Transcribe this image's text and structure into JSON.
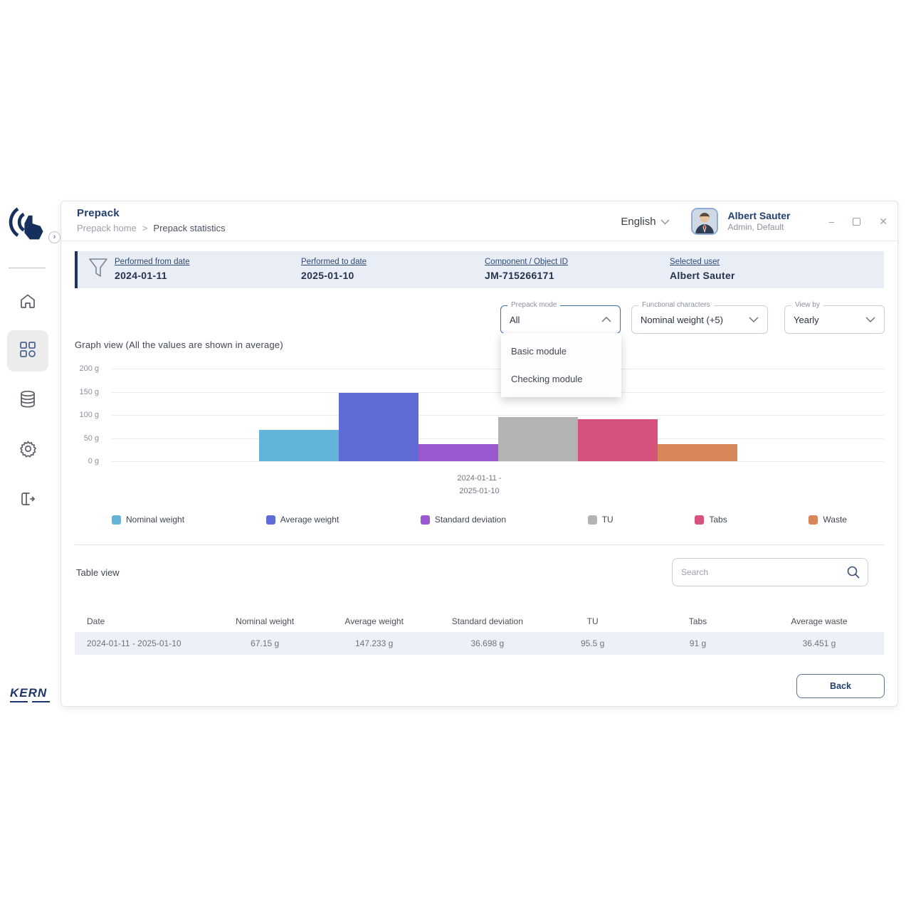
{
  "brand": "KERN",
  "window": {
    "title": "Prepack",
    "breadcrumb": {
      "home": "Prepack home",
      "separator": ">",
      "current": "Prepack statistics"
    },
    "language": "English",
    "user": {
      "name": "Albert Sauter",
      "role": "Admin, Default"
    },
    "controls": {
      "minimize": "–",
      "close": "✕"
    }
  },
  "sidebar": {
    "items": [
      {
        "name": "home",
        "active": false
      },
      {
        "name": "modules",
        "active": true
      },
      {
        "name": "database",
        "active": false
      },
      {
        "name": "settings",
        "active": false
      },
      {
        "name": "logout",
        "active": false
      }
    ]
  },
  "filters": [
    {
      "label": "Performed from date",
      "value": "2024-01-11"
    },
    {
      "label": "Performed to date",
      "value": "2025-01-10"
    },
    {
      "label": "Component / Object ID",
      "value": "JM-715266171"
    },
    {
      "label": "Selected user",
      "value": "Albert Sauter"
    }
  ],
  "controls": {
    "prepack_mode": {
      "label": "Prepack mode",
      "value": "All",
      "expanded": true,
      "options": [
        "Basic module",
        "Checking module"
      ]
    },
    "functional_characters": {
      "label": "Functional characters",
      "value": "Nominal weight (+5)"
    },
    "view_by": {
      "label": "View by",
      "value": "Yearly"
    }
  },
  "graph": {
    "title": "Graph view (All the values are shown in average)",
    "xlabel_line1": "2024-01-11 -",
    "xlabel_line2": "2025-01-10"
  },
  "chart_data": {
    "type": "bar",
    "title": "Graph view (All the values are shown in average)",
    "categories": [
      "2024-01-11 - 2025-01-10"
    ],
    "series": [
      {
        "name": "Nominal weight",
        "values": [
          67.15
        ],
        "color": "#62b5d9"
      },
      {
        "name": "Average weight",
        "values": [
          147.233
        ],
        "color": "#5f6bd6"
      },
      {
        "name": "Standard deviation",
        "values": [
          36.698
        ],
        "color": "#9b59d0"
      },
      {
        "name": "TU",
        "values": [
          95.5
        ],
        "color": "#b3b3b3"
      },
      {
        "name": "Tabs",
        "values": [
          91
        ],
        "color": "#d5537d"
      },
      {
        "name": "Waste",
        "values": [
          36.451
        ],
        "color": "#d8875a"
      }
    ],
    "ylim": [
      0,
      200
    ],
    "yticks": [
      "200 g",
      "150 g",
      "100 g",
      "50 g",
      "0 g"
    ],
    "unit": "g",
    "grid": true,
    "legend_position": "bottom"
  },
  "table": {
    "title": "Table view",
    "search_placeholder": "Search",
    "columns": [
      "Date",
      "Nominal weight",
      "Average weight",
      "Standard deviation",
      "TU",
      "Tabs",
      "Average waste"
    ],
    "rows": [
      [
        "2024-01-11 - 2025-01-10",
        "67.15 g",
        "147.233 g",
        "36.698 g",
        "95.5 g",
        "91 g",
        "36.451 g"
      ]
    ]
  },
  "back_label": "Back"
}
